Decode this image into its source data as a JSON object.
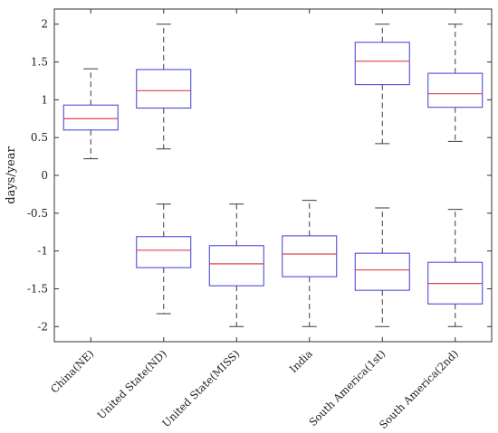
{
  "chart_data": {
    "type": "boxplot",
    "ylabel": "days/year",
    "ylim": [
      -2.2,
      2.2
    ],
    "yticks": [
      2,
      1.5,
      1,
      0.5,
      0,
      -0.5,
      -1,
      -1.5,
      -2
    ],
    "ytick_labels": [
      "2",
      "1.5",
      "1",
      "0.5",
      "0",
      "-0.5",
      "-1",
      "-1.5",
      "-2"
    ],
    "categories": [
      "China(NE)",
      "United State(ND)",
      "United State(MISS)",
      "India",
      "South America(1st)",
      "South America(2nd)"
    ],
    "grid": false,
    "colors": {
      "box": "#3b3bd9",
      "median": "#e0454a",
      "whisker": "#3a3a3a",
      "axis": "#333333"
    },
    "boxes": [
      {
        "category": "China(NE)",
        "group": "positive",
        "whisker_low": 0.22,
        "q1": 0.6,
        "median": 0.75,
        "q3": 0.93,
        "whisker_high": 1.41
      },
      {
        "category": "United State(ND)",
        "group": "positive",
        "whisker_low": 0.35,
        "q1": 0.89,
        "median": 1.12,
        "q3": 1.4,
        "whisker_high": 2.0
      },
      {
        "category": "South America(1st)",
        "group": "positive",
        "whisker_low": 0.42,
        "q1": 1.2,
        "median": 1.51,
        "q3": 1.76,
        "whisker_high": 2.0
      },
      {
        "category": "South America(2nd)",
        "group": "positive",
        "whisker_low": 0.45,
        "q1": 0.9,
        "median": 1.08,
        "q3": 1.35,
        "whisker_high": 2.0
      },
      {
        "category": "United State(ND)",
        "group": "negative",
        "whisker_low": -1.83,
        "q1": -1.22,
        "median": -0.99,
        "q3": -0.81,
        "whisker_high": -0.38
      },
      {
        "category": "United State(MISS)",
        "group": "negative",
        "whisker_low": -2.0,
        "q1": -1.46,
        "median": -1.17,
        "q3": -0.93,
        "whisker_high": -0.38
      },
      {
        "category": "India",
        "group": "negative",
        "whisker_low": -2.0,
        "q1": -1.34,
        "median": -1.04,
        "q3": -0.8,
        "whisker_high": -0.33
      },
      {
        "category": "South America(1st)",
        "group": "negative",
        "whisker_low": -2.0,
        "q1": -1.52,
        "median": -1.25,
        "q3": -1.03,
        "whisker_high": -0.43
      },
      {
        "category": "South America(2nd)",
        "group": "negative",
        "whisker_low": -2.0,
        "q1": -1.7,
        "median": -1.43,
        "q3": -1.15,
        "whisker_high": -0.45
      }
    ]
  }
}
